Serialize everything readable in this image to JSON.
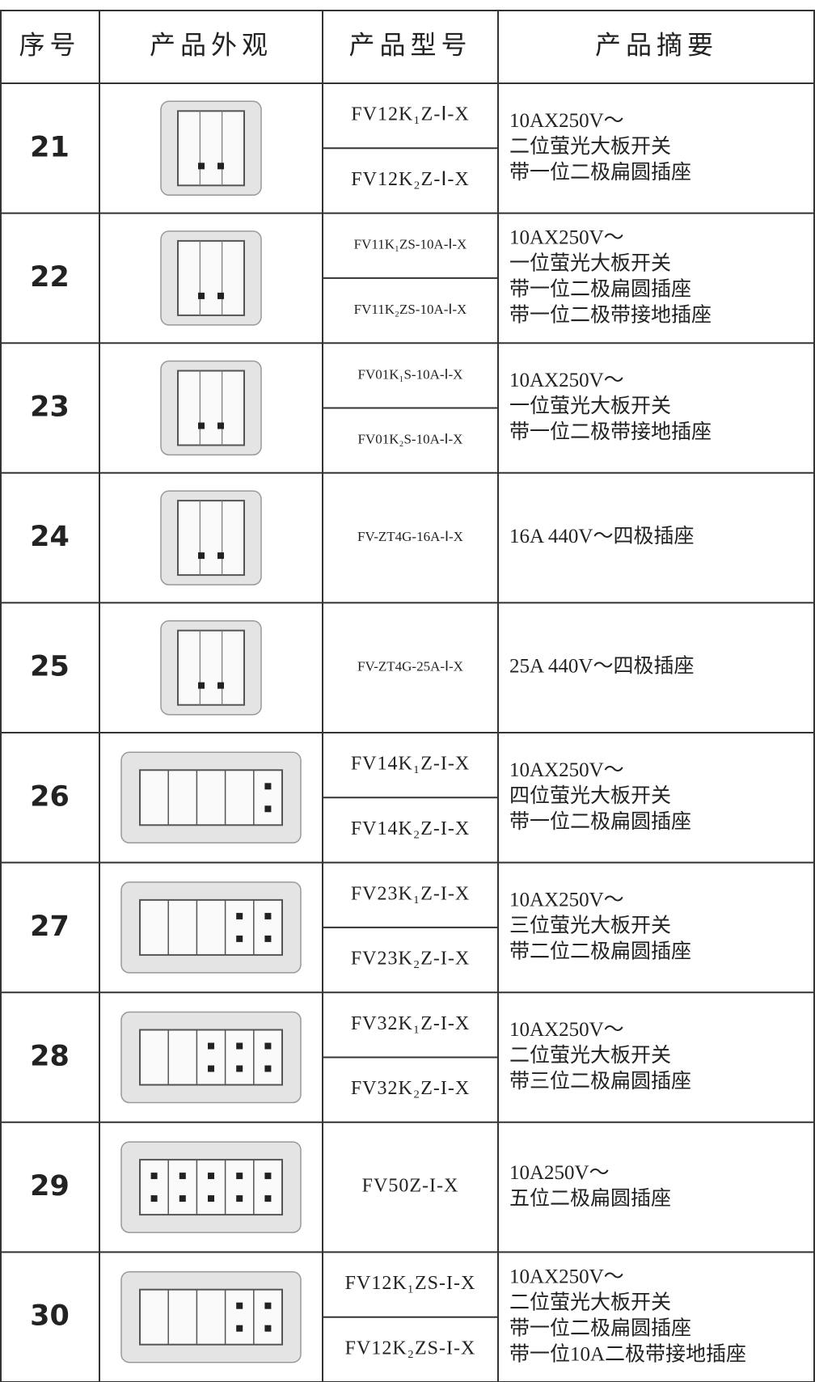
{
  "header": {
    "columns": [
      "序号",
      "产品外观",
      "产品型号",
      "产品摘要"
    ]
  },
  "rows": [
    {
      "number": "21",
      "models": [
        "FV12K₁Z-Ⅰ-X",
        "FV12K₂Z-Ⅰ-X"
      ],
      "summary": [
        "10AX250V～",
        "二位萤光大板开关",
        "带一位二极扁圆插座"
      ]
    },
    {
      "number": "22",
      "models": [
        "FV11K₁ZS-10A-Ⅰ-X",
        "FV11K₂ZS-10A-Ⅰ-X"
      ],
      "summary": [
        "10AX250V～",
        "一位萤光大板开关",
        "带一位二极扁圆插座",
        "带一位二极带接地插座"
      ]
    },
    {
      "number": "23",
      "models": [
        "FV01K₁S-10A-Ⅰ-X",
        "FV01K₂S-10A-Ⅰ-X"
      ],
      "summary": [
        "10AX250V～",
        "一位萤光大板开关",
        "带一位二极带接地插座"
      ]
    },
    {
      "number": "24",
      "models": [
        "FV-ZT4G-16A-Ⅰ-X"
      ],
      "summary": [
        "16A 440V～四极插座"
      ]
    },
    {
      "number": "25",
      "models": [
        "FV-ZT4G-25A-Ⅰ-X"
      ],
      "summary": [
        "25A 440V～四极插座"
      ]
    },
    {
      "number": "26",
      "models": [
        "FV14K₁Z-I-X",
        "FV14K₂Z-I-X"
      ],
      "summary": [
        "10AX250V～",
        "四位萤光大板开关",
        "带一位二极扁圆插座"
      ]
    },
    {
      "number": "27",
      "models": [
        "FV23K₁Z-I-X",
        "FV23K₂Z-I-X"
      ],
      "summary": [
        "10AX250V～",
        "三位萤光大板开关",
        "带二位二极扁圆插座"
      ]
    },
    {
      "number": "28",
      "models": [
        "FV32K₁Z-I-X",
        "FV32K₂Z-I-X"
      ],
      "summary": [
        "10AX250V～",
        "二位萤光大板开关",
        "带三位二极扁圆插座"
      ]
    },
    {
      "number": "29",
      "models": [
        "FV50Z-I-X"
      ],
      "summary": [
        "10A250V～",
        "五位二极扁圆插座"
      ]
    },
    {
      "number": "30",
      "models": [
        "FV12K₁ZS-I-X",
        "FV12K₂ZS-I-X"
      ],
      "summary": [
        "10AX250V～",
        "二位萤光大板开关",
        "带一位二极扁圆插座",
        "带一位10A二极带接地插座"
      ]
    }
  ]
}
